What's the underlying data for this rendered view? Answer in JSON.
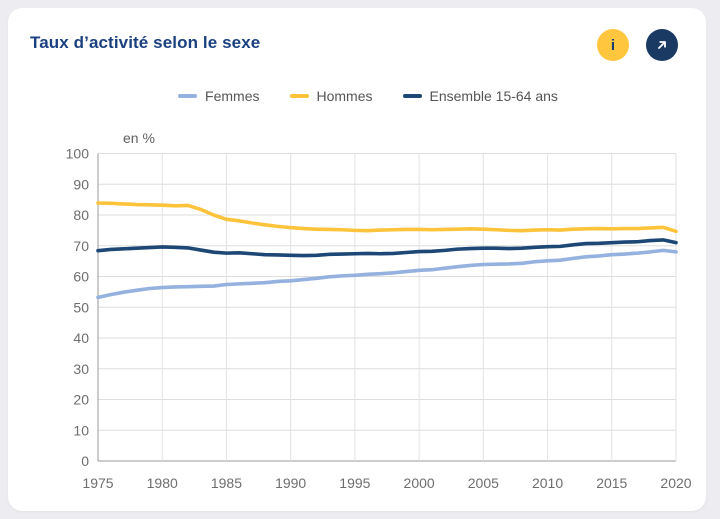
{
  "page": {
    "background": "#ececf1"
  },
  "card": {
    "title": "Taux d’activité selon le sexe",
    "title_color": "#1a4080",
    "buttons": {
      "info": {
        "glyph": "i",
        "background": "#ffc63e",
        "foreground": "#1d3c6e"
      },
      "open": {
        "icon": "arrow-up-right",
        "background": "#1a3a64",
        "foreground": "#ffffff"
      }
    }
  },
  "chart_data": {
    "type": "line",
    "title": "Taux d’activité selon le sexe",
    "unit_label": "en %",
    "xlabel": "",
    "ylabel": "en %",
    "xlim": [
      1975,
      2020
    ],
    "ylim": [
      0,
      100
    ],
    "xticks": [
      1975,
      1980,
      1985,
      1990,
      1995,
      2000,
      2005,
      2010,
      2015,
      2020
    ],
    "yticks": [
      0,
      10,
      20,
      30,
      40,
      50,
      60,
      70,
      80,
      90,
      100
    ],
    "grid": true,
    "legend_position": "top",
    "axis_color": "#9a9a9a",
    "gridline_color": "#dedede",
    "x": [
      1975,
      1976,
      1977,
      1978,
      1979,
      1980,
      1981,
      1982,
      1983,
      1984,
      1985,
      1986,
      1987,
      1988,
      1989,
      1990,
      1991,
      1992,
      1993,
      1994,
      1995,
      1996,
      1997,
      1998,
      1999,
      2000,
      2001,
      2002,
      2003,
      2004,
      2005,
      2006,
      2007,
      2008,
      2009,
      2010,
      2011,
      2012,
      2013,
      2014,
      2015,
      2016,
      2017,
      2018,
      2019,
      2020
    ],
    "series": [
      {
        "id": "femmes",
        "name": "Femmes",
        "color": "#94b1df",
        "values": [
          53.2,
          54.1,
          54.9,
          55.5,
          56.1,
          56.4,
          56.6,
          56.7,
          56.8,
          56.9,
          57.4,
          57.6,
          57.8,
          58.0,
          58.4,
          58.6,
          59.0,
          59.4,
          59.9,
          60.2,
          60.4,
          60.7,
          60.9,
          61.2,
          61.6,
          62.0,
          62.2,
          62.7,
          63.2,
          63.6,
          63.9,
          64.0,
          64.1,
          64.3,
          64.8,
          65.1,
          65.3,
          65.9,
          66.4,
          66.7,
          67.1,
          67.3,
          67.6,
          68.0,
          68.5,
          68.0
        ]
      },
      {
        "id": "hommes",
        "name": "Hommes",
        "color": "#fdc33a",
        "values": [
          83.9,
          83.8,
          83.6,
          83.4,
          83.3,
          83.2,
          83.0,
          83.1,
          81.8,
          80.0,
          78.6,
          78.1,
          77.4,
          76.8,
          76.3,
          75.9,
          75.6,
          75.4,
          75.3,
          75.2,
          75.0,
          74.9,
          75.1,
          75.2,
          75.3,
          75.3,
          75.2,
          75.3,
          75.4,
          75.5,
          75.4,
          75.2,
          75.0,
          74.9,
          75.1,
          75.2,
          75.1,
          75.4,
          75.5,
          75.6,
          75.5,
          75.6,
          75.6,
          75.8,
          76.0,
          74.7
        ]
      },
      {
        "id": "ensemble",
        "name": "Ensemble 15-64 ans",
        "color": "#1d4775",
        "values": [
          68.4,
          68.8,
          69.0,
          69.2,
          69.4,
          69.6,
          69.5,
          69.3,
          68.6,
          67.9,
          67.6,
          67.7,
          67.4,
          67.1,
          67.0,
          66.9,
          66.8,
          66.9,
          67.2,
          67.3,
          67.4,
          67.5,
          67.4,
          67.5,
          67.8,
          68.1,
          68.2,
          68.5,
          68.9,
          69.1,
          69.2,
          69.2,
          69.1,
          69.2,
          69.5,
          69.7,
          69.8,
          70.3,
          70.7,
          70.8,
          71.0,
          71.2,
          71.3,
          71.7,
          71.9,
          71.0
        ]
      }
    ]
  }
}
